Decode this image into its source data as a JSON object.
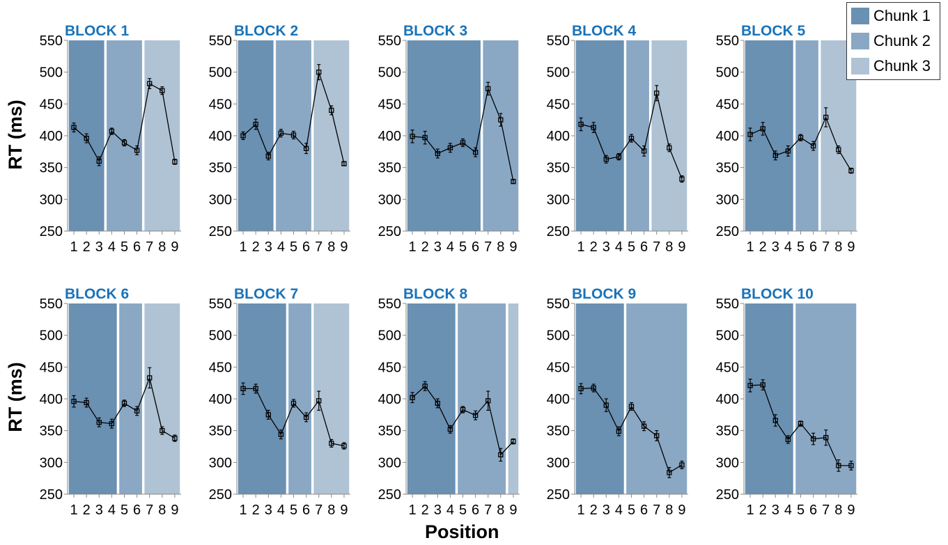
{
  "figure": {
    "ylabel": "RT (ms)",
    "xlabel": "Position",
    "legend": [
      {
        "label": "Chunk 1",
        "color": "#6a90b2"
      },
      {
        "label": "Chunk 2",
        "color": "#8aa8c4"
      },
      {
        "label": "Chunk 3",
        "color": "#afc3d4"
      }
    ],
    "title_color": "#1a73b8"
  },
  "chart_data": [
    {
      "type": "line",
      "title": "BLOCK 1",
      "x": [
        1,
        2,
        3,
        4,
        5,
        6,
        7,
        8,
        9
      ],
      "ylim": [
        250,
        550
      ],
      "yticks": [
        250,
        300,
        350,
        400,
        450,
        500,
        550
      ],
      "values": [
        413,
        396,
        360,
        407,
        389,
        377,
        482,
        471,
        359
      ],
      "errors": [
        7,
        7,
        7,
        5,
        5,
        7,
        8,
        6,
        4
      ],
      "chunks": [
        {
          "name": "Chunk 1",
          "positions": [
            1,
            3
          ]
        },
        {
          "name": "Chunk 2",
          "positions": [
            4,
            6
          ]
        },
        {
          "name": "Chunk 3",
          "positions": [
            7,
            9
          ]
        }
      ]
    },
    {
      "type": "line",
      "title": "BLOCK 2",
      "x": [
        1,
        2,
        3,
        4,
        5,
        6,
        7,
        8,
        9
      ],
      "ylim": [
        250,
        550
      ],
      "yticks": [
        250,
        300,
        350,
        400,
        450,
        500,
        550
      ],
      "values": [
        400,
        418,
        368,
        404,
        401,
        380,
        500,
        440,
        356
      ],
      "errors": [
        6,
        8,
        6,
        6,
        6,
        8,
        12,
        7,
        3
      ],
      "chunks": [
        {
          "name": "Chunk 1",
          "positions": [
            1,
            3
          ]
        },
        {
          "name": "Chunk 2",
          "positions": [
            4,
            6
          ]
        },
        {
          "name": "Chunk 3",
          "positions": [
            7,
            9
          ]
        }
      ]
    },
    {
      "type": "line",
      "title": "BLOCK 3",
      "x": [
        1,
        2,
        3,
        4,
        5,
        6,
        7,
        8,
        9
      ],
      "ylim": [
        250,
        550
      ],
      "yticks": [
        250,
        300,
        350,
        400,
        450,
        500,
        550
      ],
      "values": [
        399,
        397,
        372,
        381,
        389,
        374,
        474,
        425,
        328
      ],
      "errors": [
        10,
        10,
        7,
        7,
        6,
        7,
        10,
        10,
        3
      ],
      "chunks": [
        {
          "name": "Chunk 1",
          "positions": [
            1,
            6
          ]
        },
        {
          "name": "Chunk 2",
          "positions": [
            7,
            9
          ]
        }
      ]
    },
    {
      "type": "line",
      "title": "BLOCK 4",
      "x": [
        1,
        2,
        3,
        4,
        5,
        6,
        7,
        8,
        9
      ],
      "ylim": [
        250,
        550
      ],
      "yticks": [
        250,
        300,
        350,
        400,
        450,
        500,
        550
      ],
      "values": [
        418,
        413,
        363,
        367,
        396,
        376,
        467,
        381,
        332
      ],
      "errors": [
        10,
        8,
        6,
        5,
        6,
        8,
        12,
        6,
        5
      ],
      "chunks": [
        {
          "name": "Chunk 1",
          "positions": [
            1,
            4
          ]
        },
        {
          "name": "Chunk 2",
          "positions": [
            5,
            6
          ]
        },
        {
          "name": "Chunk 3",
          "positions": [
            7,
            9
          ]
        }
      ]
    },
    {
      "type": "line",
      "title": "BLOCK 5",
      "x": [
        1,
        2,
        3,
        4,
        5,
        6,
        7,
        8,
        9
      ],
      "ylim": [
        250,
        550
      ],
      "yticks": [
        250,
        300,
        350,
        400,
        450,
        500,
        550
      ],
      "values": [
        402,
        411,
        369,
        376,
        397,
        384,
        429,
        378,
        345
      ],
      "errors": [
        10,
        10,
        7,
        8,
        5,
        7,
        15,
        6,
        4
      ],
      "chunks": [
        {
          "name": "Chunk 1",
          "positions": [
            1,
            4
          ]
        },
        {
          "name": "Chunk 2",
          "positions": [
            5,
            6
          ]
        },
        {
          "name": "Chunk 3",
          "positions": [
            7,
            9
          ]
        }
      ]
    },
    {
      "type": "line",
      "title": "BLOCK 6",
      "x": [
        1,
        2,
        3,
        4,
        5,
        6,
        7,
        8,
        9
      ],
      "ylim": [
        250,
        550
      ],
      "yticks": [
        250,
        300,
        350,
        400,
        450,
        500,
        550
      ],
      "values": [
        396,
        394,
        363,
        361,
        393,
        381,
        433,
        350,
        338
      ],
      "errors": [
        9,
        7,
        7,
        7,
        5,
        7,
        16,
        6,
        5
      ],
      "chunks": [
        {
          "name": "Chunk 1",
          "positions": [
            1,
            4
          ]
        },
        {
          "name": "Chunk 2",
          "positions": [
            5,
            6
          ]
        },
        {
          "name": "Chunk 3",
          "positions": [
            7,
            9
          ]
        }
      ]
    },
    {
      "type": "line",
      "title": "BLOCK 7",
      "x": [
        1,
        2,
        3,
        4,
        5,
        6,
        7,
        8,
        9
      ],
      "ylim": [
        250,
        550
      ],
      "yticks": [
        250,
        300,
        350,
        400,
        450,
        500,
        550
      ],
      "values": [
        416,
        416,
        375,
        344,
        393,
        371,
        397,
        330,
        326
      ],
      "errors": [
        9,
        7,
        7,
        7,
        6,
        7,
        15,
        6,
        5
      ],
      "chunks": [
        {
          "name": "Chunk 1",
          "positions": [
            1,
            4
          ]
        },
        {
          "name": "Chunk 2",
          "positions": [
            5,
            6
          ]
        },
        {
          "name": "Chunk 3",
          "positions": [
            7,
            9
          ]
        }
      ]
    },
    {
      "type": "line",
      "title": "BLOCK 8",
      "x": [
        1,
        2,
        3,
        4,
        5,
        6,
        7,
        8,
        9
      ],
      "ylim": [
        250,
        550
      ],
      "yticks": [
        250,
        300,
        350,
        400,
        450,
        500,
        550
      ],
      "values": [
        402,
        420,
        393,
        352,
        383,
        374,
        397,
        312,
        333
      ],
      "errors": [
        8,
        7,
        7,
        6,
        5,
        7,
        15,
        10,
        4
      ],
      "chunks": [
        {
          "name": "Chunk 1",
          "positions": [
            1,
            4
          ]
        },
        {
          "name": "Chunk 2",
          "positions": [
            5,
            8
          ]
        },
        {
          "name": "Chunk 3",
          "positions": [
            9,
            9
          ]
        }
      ]
    },
    {
      "type": "line",
      "title": "BLOCK 9",
      "x": [
        1,
        2,
        3,
        4,
        5,
        6,
        7,
        8,
        9
      ],
      "ylim": [
        250,
        550
      ],
      "yticks": [
        250,
        300,
        350,
        400,
        450,
        500,
        550
      ],
      "values": [
        416,
        417,
        390,
        349,
        388,
        357,
        342,
        284,
        296
      ],
      "errors": [
        8,
        6,
        10,
        7,
        6,
        7,
        8,
        8,
        6
      ],
      "chunks": [
        {
          "name": "Chunk 1",
          "positions": [
            1,
            4
          ]
        },
        {
          "name": "Chunk 2",
          "positions": [
            5,
            9
          ]
        }
      ]
    },
    {
      "type": "line",
      "title": "BLOCK 10",
      "x": [
        1,
        2,
        3,
        4,
        5,
        6,
        7,
        8,
        9
      ],
      "ylim": [
        250,
        550
      ],
      "yticks": [
        250,
        300,
        350,
        400,
        450,
        500,
        550
      ],
      "values": [
        421,
        422,
        366,
        336,
        361,
        337,
        339,
        295,
        295
      ],
      "errors": [
        10,
        8,
        9,
        6,
        4,
        9,
        12,
        9,
        7
      ],
      "chunks": [
        {
          "name": "Chunk 1",
          "positions": [
            1,
            4
          ]
        },
        {
          "name": "Chunk 2",
          "positions": [
            5,
            9
          ]
        }
      ]
    }
  ]
}
